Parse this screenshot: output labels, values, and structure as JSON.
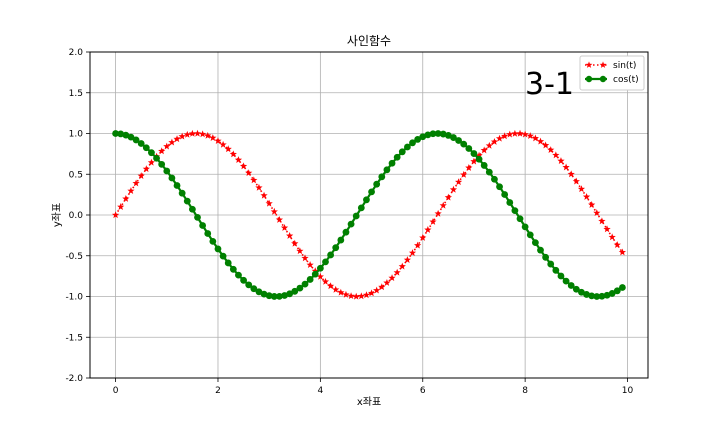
{
  "chart_data": {
    "type": "line",
    "title": "사인함수",
    "xlabel": "x좌표",
    "ylabel": "y좌표",
    "xlim": [
      -0.5,
      10.4
    ],
    "ylim": [
      -2.0,
      2.0
    ],
    "xticks": [
      "0",
      "2",
      "4",
      "6",
      "8",
      "10"
    ],
    "yticks": [
      "-2.0",
      "-1.5",
      "-1.0",
      "-0.5",
      "0.0",
      "0.5",
      "1.0",
      "1.5",
      "2.0"
    ],
    "grid": true,
    "legend_position": "top-right",
    "annotation": "3-1",
    "x_start": 0,
    "x_step": 0.1,
    "x_count": 100,
    "series": [
      {
        "name": "sin(t)",
        "function": "sin",
        "color": "#ff0000",
        "marker": "star",
        "line": "dotted"
      },
      {
        "name": "cos(t)",
        "function": "cos",
        "color": "#008000",
        "marker": "circle",
        "line": "solid"
      }
    ]
  }
}
